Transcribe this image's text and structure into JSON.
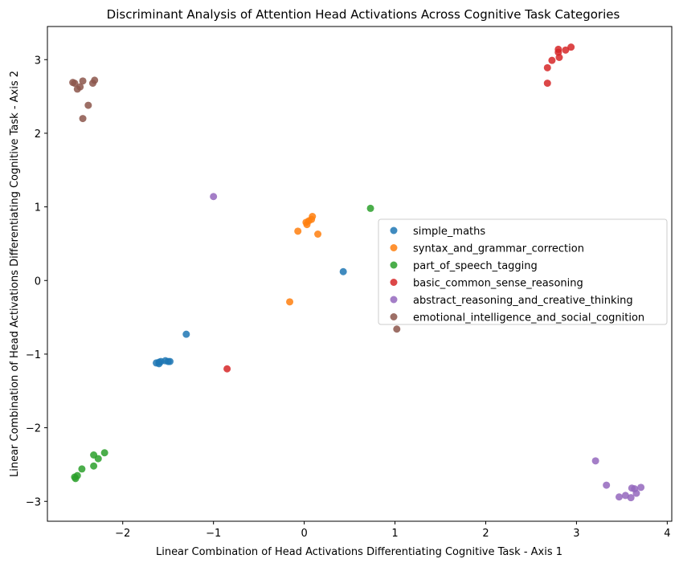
{
  "chart_data": {
    "type": "scatter",
    "title": "Discriminant Analysis of Attention Head Activations Across Cognitive Task Categories",
    "xlabel": "Linear Combination of Head Activations Differentiating Cognitive Task - Axis 1",
    "ylabel": "Linear Combination of Head Activations Differentiating Cognitive Task - Axis 2",
    "xlim": [
      -2.83,
      4.05
    ],
    "ylim": [
      -3.27,
      3.45
    ],
    "xticks": [
      -2,
      -1,
      0,
      1,
      2,
      3,
      4
    ],
    "xtick_labels": [
      "−2",
      "−1",
      "0",
      "1",
      "2",
      "3",
      "4"
    ],
    "yticks": [
      -3,
      -2,
      -1,
      0,
      1,
      2,
      3
    ],
    "ytick_labels": [
      "−3",
      "−2",
      "−1",
      "0",
      "1",
      "2",
      "3"
    ],
    "grid": false,
    "legend_position": "center-right",
    "series": [
      {
        "name": "simple_maths",
        "color": "#1f77b4",
        "points": [
          [
            -1.63,
            -1.12
          ],
          [
            -1.6,
            -1.13
          ],
          [
            -1.6,
            -1.11
          ],
          [
            -1.58,
            -1.1
          ],
          [
            -1.53,
            -1.09
          ],
          [
            -1.5,
            -1.1
          ],
          [
            -1.48,
            -1.1
          ],
          [
            -1.3,
            -0.73
          ],
          [
            0.43,
            0.12
          ]
        ]
      },
      {
        "name": "syntax_and_grammar_correction",
        "color": "#ff7f0e",
        "points": [
          [
            -0.16,
            -0.29
          ],
          [
            -0.07,
            0.67
          ],
          [
            0.02,
            0.79
          ],
          [
            0.03,
            0.76
          ],
          [
            0.05,
            0.81
          ],
          [
            0.08,
            0.83
          ],
          [
            0.09,
            0.87
          ],
          [
            0.15,
            0.63
          ]
        ]
      },
      {
        "name": "part_of_speech_tagging",
        "color": "#2ca02c",
        "points": [
          [
            -2.53,
            -2.67
          ],
          [
            -2.52,
            -2.69
          ],
          [
            -2.5,
            -2.65
          ],
          [
            -2.45,
            -2.56
          ],
          [
            -2.32,
            -2.52
          ],
          [
            -2.32,
            -2.37
          ],
          [
            -2.27,
            -2.42
          ],
          [
            -2.2,
            -2.34
          ],
          [
            0.73,
            0.98
          ]
        ]
      },
      {
        "name": "basic_common_sense_reasoning",
        "color": "#d62728",
        "points": [
          [
            2.68,
            2.68
          ],
          [
            2.68,
            2.89
          ],
          [
            2.73,
            2.99
          ],
          [
            2.8,
            3.1
          ],
          [
            2.8,
            3.14
          ],
          [
            2.81,
            3.03
          ],
          [
            2.88,
            3.13
          ],
          [
            2.94,
            3.17
          ],
          [
            -0.85,
            -1.2
          ]
        ]
      },
      {
        "name": "abstract_reasoning_and_creative_thinking",
        "color": "#9467bd",
        "points": [
          [
            3.21,
            -2.45
          ],
          [
            3.33,
            -2.78
          ],
          [
            3.47,
            -2.94
          ],
          [
            3.54,
            -2.92
          ],
          [
            3.6,
            -2.95
          ],
          [
            3.61,
            -2.82
          ],
          [
            3.64,
            -2.83
          ],
          [
            3.66,
            -2.89
          ],
          [
            3.71,
            -2.81
          ],
          [
            -1.0,
            1.14
          ]
        ]
      },
      {
        "name": "emotional_intelligence_and_social_cognition",
        "color": "#8c564b",
        "points": [
          [
            -2.55,
            2.69
          ],
          [
            -2.53,
            2.68
          ],
          [
            -2.5,
            2.6
          ],
          [
            -2.47,
            2.63
          ],
          [
            -2.44,
            2.71
          ],
          [
            -2.44,
            2.2
          ],
          [
            -2.38,
            2.38
          ],
          [
            -2.33,
            2.68
          ],
          [
            -2.31,
            2.72
          ],
          [
            1.02,
            -0.66
          ]
        ]
      }
    ]
  }
}
